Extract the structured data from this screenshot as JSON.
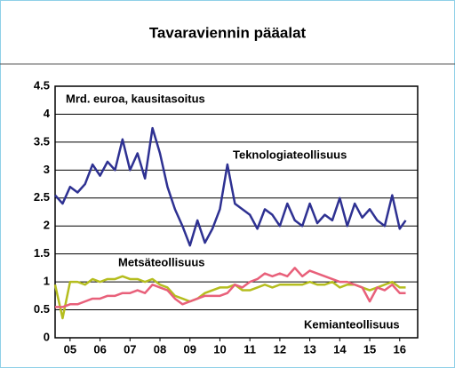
{
  "chart_data": {
    "type": "line",
    "title": "Tavaraviennin pääalat",
    "subtitle": "Mrd. euroa, kausitasoitus",
    "x": [
      2005,
      2005.25,
      2005.5,
      2005.75,
      2006,
      2006.25,
      2006.5,
      2006.75,
      2007,
      2007.25,
      2007.5,
      2007.75,
      2008,
      2008.25,
      2008.5,
      2008.75,
      2009,
      2009.25,
      2009.5,
      2009.75,
      2010,
      2010.25,
      2010.5,
      2010.75,
      2011,
      2011.25,
      2011.5,
      2011.75,
      2012,
      2012.25,
      2012.5,
      2012.75,
      2013,
      2013.25,
      2013.5,
      2013.75,
      2014,
      2014.25,
      2014.5,
      2014.75,
      2015,
      2015.25,
      2015.5,
      2015.75,
      2016,
      2016.25,
      2016.5,
      2016.7
    ],
    "series": [
      {
        "name": "Teknologiateollisuus",
        "color": "#2e3192",
        "values": [
          2.55,
          2.4,
          2.7,
          2.6,
          2.75,
          3.1,
          2.9,
          3.15,
          3.0,
          3.55,
          3.0,
          3.3,
          2.85,
          3.75,
          3.3,
          2.7,
          2.3,
          2.0,
          1.65,
          2.1,
          1.7,
          1.95,
          2.3,
          3.1,
          2.4,
          2.3,
          2.2,
          1.95,
          2.3,
          2.2,
          2.0,
          2.4,
          2.1,
          2.0,
          2.4,
          2.05,
          2.2,
          2.1,
          2.5,
          2.0,
          2.4,
          2.15,
          2.3,
          2.1,
          2.0,
          2.55,
          1.95,
          2.1
        ]
      },
      {
        "name": "Metsäteollisuus",
        "color": "#b5bd1e",
        "values": [
          0.95,
          0.35,
          1.0,
          1.0,
          0.95,
          1.05,
          1.0,
          1.05,
          1.05,
          1.1,
          1.05,
          1.05,
          1.0,
          1.05,
          0.95,
          0.9,
          0.75,
          0.7,
          0.65,
          0.7,
          0.8,
          0.85,
          0.9,
          0.9,
          0.95,
          0.85,
          0.85,
          0.9,
          0.95,
          0.9,
          0.95,
          0.95,
          0.95,
          0.95,
          1.0,
          0.95,
          0.95,
          1.0,
          0.9,
          0.95,
          0.95,
          0.9,
          0.85,
          0.9,
          0.95,
          1.0,
          0.9,
          0.9
        ]
      },
      {
        "name": "Kemianteollisuus",
        "color": "#e8607a",
        "values": [
          0.55,
          0.55,
          0.6,
          0.6,
          0.65,
          0.7,
          0.7,
          0.75,
          0.75,
          0.8,
          0.8,
          0.85,
          0.8,
          0.95,
          0.9,
          0.85,
          0.7,
          0.6,
          0.65,
          0.7,
          0.75,
          0.75,
          0.75,
          0.8,
          0.95,
          0.9,
          1.0,
          1.05,
          1.15,
          1.1,
          1.15,
          1.1,
          1.25,
          1.1,
          1.2,
          1.15,
          1.1,
          1.05,
          1.0,
          1.0,
          0.95,
          0.9,
          0.65,
          0.9,
          0.85,
          0.95,
          0.8,
          0.8
        ]
      }
    ],
    "xlim": [
      2005,
      2017.1
    ],
    "xticks": [
      {
        "value": 2005.5,
        "label": "05"
      },
      {
        "value": 2006.5,
        "label": "06"
      },
      {
        "value": 2007.5,
        "label": "07"
      },
      {
        "value": 2008.5,
        "label": "08"
      },
      {
        "value": 2009.5,
        "label": "09"
      },
      {
        "value": 2010.5,
        "label": "10"
      },
      {
        "value": 2011.5,
        "label": "11"
      },
      {
        "value": 2012.5,
        "label": "12"
      },
      {
        "value": 2013.5,
        "label": "13"
      },
      {
        "value": 2014.5,
        "label": "14"
      },
      {
        "value": 2015.5,
        "label": "15"
      },
      {
        "value": 2016.5,
        "label": "16"
      }
    ],
    "ylim": [
      0,
      4.5
    ],
    "yticks": [
      0,
      0.5,
      1,
      1.5,
      2,
      2.5,
      3,
      3.5,
      4,
      4.5
    ],
    "grid": true
  }
}
